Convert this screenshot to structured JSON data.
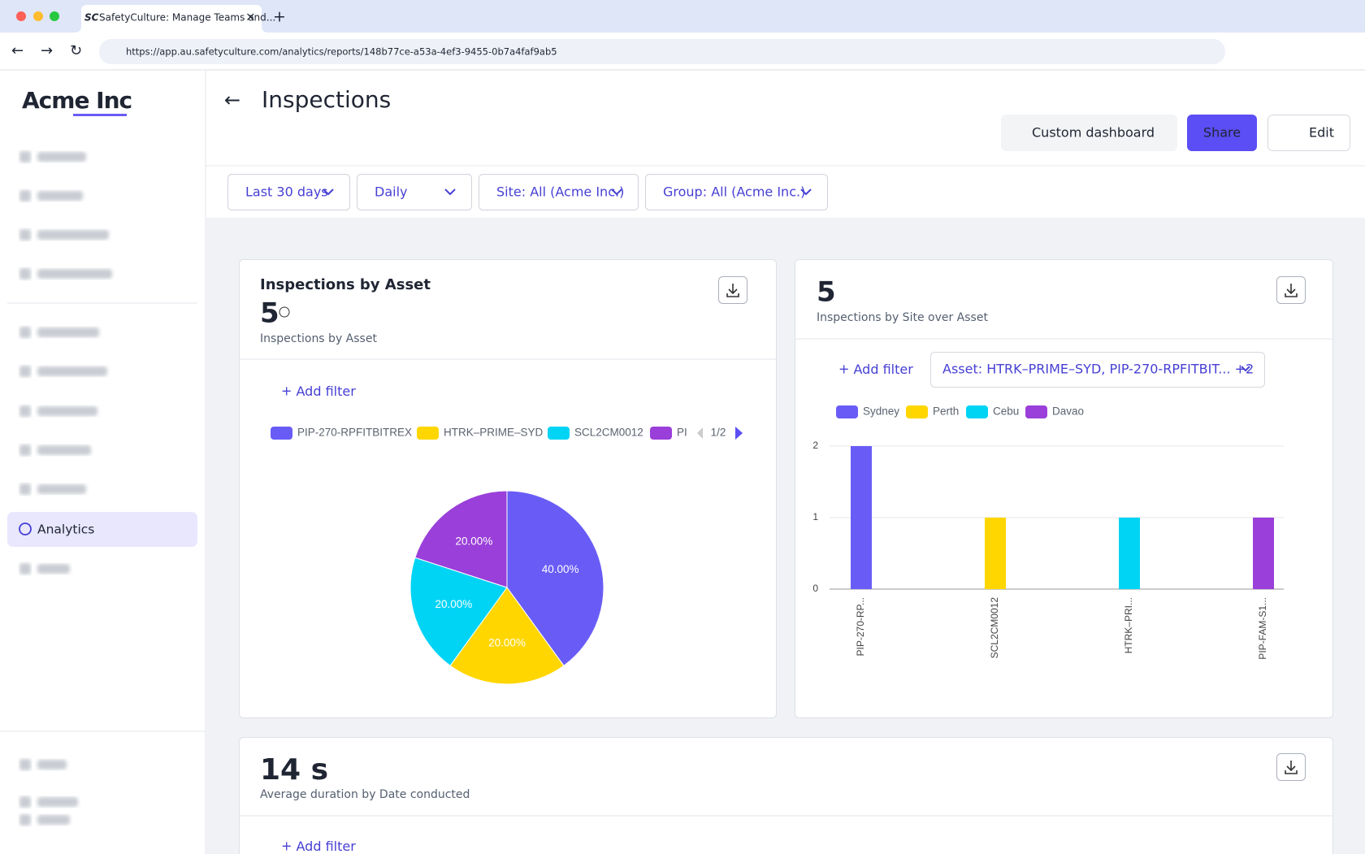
{
  "browser": {
    "tab_title": "SafetyCulture: Manage Teams and...",
    "url": "https://app.au.safetyculture.com/analytics/reports/148b77ce-a53a-4ef3-9455-0b7a4faf9ab5"
  },
  "sidebar": {
    "logo": "Acme Inc",
    "active_item": "Analytics"
  },
  "header": {
    "title": "Inspections",
    "view": "Custom dashboard",
    "share": "Share",
    "edit": "Edit"
  },
  "filters": [
    "Last 30 days",
    "Daily",
    "Site: All (Acme Inc.)",
    "Group: All (Acme Inc.)"
  ],
  "cards": [
    {
      "title": "Inspections by Asset",
      "total": "5",
      "subtitle": "Inspections by Asset",
      "add_filter": "Add filter",
      "legend_page": "1/2"
    },
    {
      "total": "5",
      "subtitle": "Inspections by Site over Asset",
      "add_filter": "Add filter",
      "asset_filter": "Asset: HTRK–PRIME–SYD, PIP-270-RPFITBIT... +2"
    },
    {
      "total": "14 s",
      "subtitle": "Average duration by Date conducted",
      "add_filter": "Add filter"
    }
  ],
  "chart_data": [
    {
      "type": "pie",
      "categories": [
        "PIP-270-RPFITBITREX",
        "HTRK–PRIME–SYD",
        "SCL2CM0012",
        "PI"
      ],
      "values": [
        40,
        20,
        20,
        20
      ],
      "value_labels": [
        "40.00%",
        "20.00%",
        "20.00%",
        "20.00%"
      ],
      "colors": [
        "#695cf6",
        "#ffd600",
        "#00d4f5",
        "#9a3fd9"
      ]
    },
    {
      "type": "bar",
      "stacked": true,
      "categories": [
        "PIP-270-RP...",
        "SCL2CM0012",
        "HTRK–PRI...",
        "PIP-FAM-S1..."
      ],
      "series": [
        {
          "name": "Sydney",
          "color": "#695cf6",
          "values": [
            2,
            null,
            null,
            null
          ]
        },
        {
          "name": "Perth",
          "color": "#ffd600",
          "values": [
            null,
            1,
            null,
            null
          ]
        },
        {
          "name": "Cebu",
          "color": "#00d4f5",
          "values": [
            null,
            null,
            1,
            null
          ]
        },
        {
          "name": "Davao",
          "color": "#9a3fd9",
          "values": [
            null,
            null,
            null,
            1
          ]
        }
      ],
      "ylim": [
        0,
        2
      ],
      "yticks": [
        0,
        1,
        2
      ],
      "grid": true
    }
  ]
}
